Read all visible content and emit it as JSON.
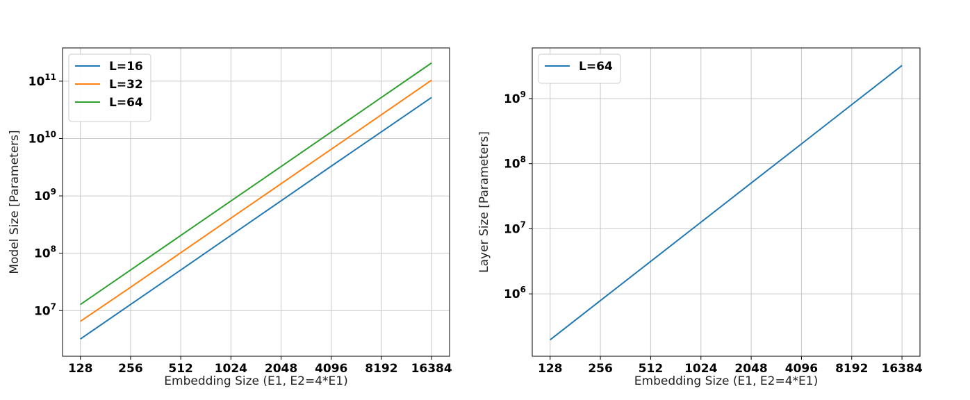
{
  "chart_data": [
    {
      "type": "line",
      "xscale": "log2",
      "yscale": "log10",
      "xlabel": "Embedding Size (E1, E2=4*E1)",
      "ylabel": "Model Size [Parameters]",
      "x_ticks": [
        128,
        256,
        512,
        1024,
        2048,
        4096,
        8192,
        16384
      ],
      "x_tick_labels": [
        "128",
        "256",
        "512",
        "1024",
        "2048",
        "4096",
        "8192",
        "16384"
      ],
      "y_ticks": [
        10000000,
        100000000,
        1000000000,
        10000000000,
        100000000000
      ],
      "y_tick_labels": [
        {
          "base": "10",
          "exp": "7"
        },
        {
          "base": "10",
          "exp": "8"
        },
        {
          "base": "10",
          "exp": "9"
        },
        {
          "base": "10",
          "exp": "10"
        },
        {
          "base": "10",
          "exp": "11"
        }
      ],
      "xlim": [
        100,
        21000
      ],
      "ylim": [
        1600000,
        380000000000
      ],
      "grid": true,
      "legend_position": "top-left",
      "series": [
        {
          "name": "L=16",
          "color": "#1f77b4",
          "x": [
            128,
            256,
            512,
            1024,
            2048,
            4096,
            8192,
            16384
          ],
          "y": [
            3200000,
            12800000,
            51000000,
            205000000,
            820000000,
            3300000000,
            13100000000,
            52000000000
          ]
        },
        {
          "name": "L=32",
          "color": "#ff7f0e",
          "x": [
            128,
            256,
            512,
            1024,
            2048,
            4096,
            8192,
            16384
          ],
          "y": [
            6500000,
            25500000,
            102000000,
            408000000,
            1630000000,
            6500000000,
            26000000000,
            104000000000
          ]
        },
        {
          "name": "L=64",
          "color": "#2ca02c",
          "x": [
            128,
            256,
            512,
            1024,
            2048,
            4096,
            8192,
            16384
          ],
          "y": [
            12800000,
            51000000,
            204000000,
            815000000,
            3250000000,
            13000000000,
            52000000000,
            208000000000
          ]
        }
      ]
    },
    {
      "type": "line",
      "xscale": "log2",
      "yscale": "log10",
      "xlabel": "Embedding Size (E1, E2=4*E1)",
      "ylabel": "Layer Size [Parameters]",
      "x_ticks": [
        128,
        256,
        512,
        1024,
        2048,
        4096,
        8192,
        16384
      ],
      "x_tick_labels": [
        "128",
        "256",
        "512",
        "1024",
        "2048",
        "4096",
        "8192",
        "16384"
      ],
      "y_ticks": [
        1000000,
        10000000,
        100000000,
        1000000000
      ],
      "y_tick_labels": [
        {
          "base": "10",
          "exp": "6"
        },
        {
          "base": "10",
          "exp": "7"
        },
        {
          "base": "10",
          "exp": "8"
        },
        {
          "base": "10",
          "exp": "9"
        }
      ],
      "xlim": [
        100,
        21000
      ],
      "ylim": [
        110000,
        6000000000
      ],
      "grid": true,
      "legend_position": "top-left",
      "series": [
        {
          "name": "L=64",
          "color": "#1f77b4",
          "x": [
            128,
            256,
            512,
            1024,
            2048,
            4096,
            8192,
            16384
          ],
          "y": [
            197000,
            788000,
            3150000,
            12600000,
            50400000,
            201000000,
            805000000,
            3220000000
          ]
        }
      ]
    }
  ]
}
